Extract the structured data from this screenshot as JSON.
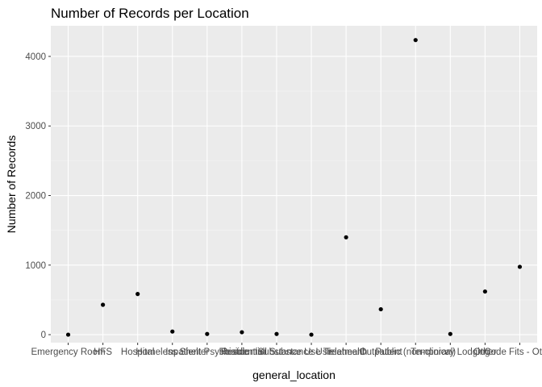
{
  "chart_data": {
    "type": "scatter",
    "title": "Number of Records per Location",
    "xlabel": "general_location",
    "ylabel": "Number of Records",
    "ylim": [
      -115,
      4440
    ],
    "yticks": [
      0,
      1000,
      2000,
      3000,
      4000
    ],
    "grid": true,
    "categories": [
      "Emergency Room",
      "HFS",
      "Hospital",
      "Homeless Shelter",
      "Inpatient Psychiatric",
      "Residential",
      "Residential Substance Use",
      "Substance Use Treatment",
      "Telehealth",
      "Outpatient",
      "Public (non-clinical)",
      "Temporary Lodging",
      "Other",
      "Code Fits - Other"
    ],
    "values": [
      0,
      430,
      585,
      45,
      10,
      35,
      10,
      0,
      1400,
      365,
      4235,
      10,
      620,
      975
    ]
  }
}
